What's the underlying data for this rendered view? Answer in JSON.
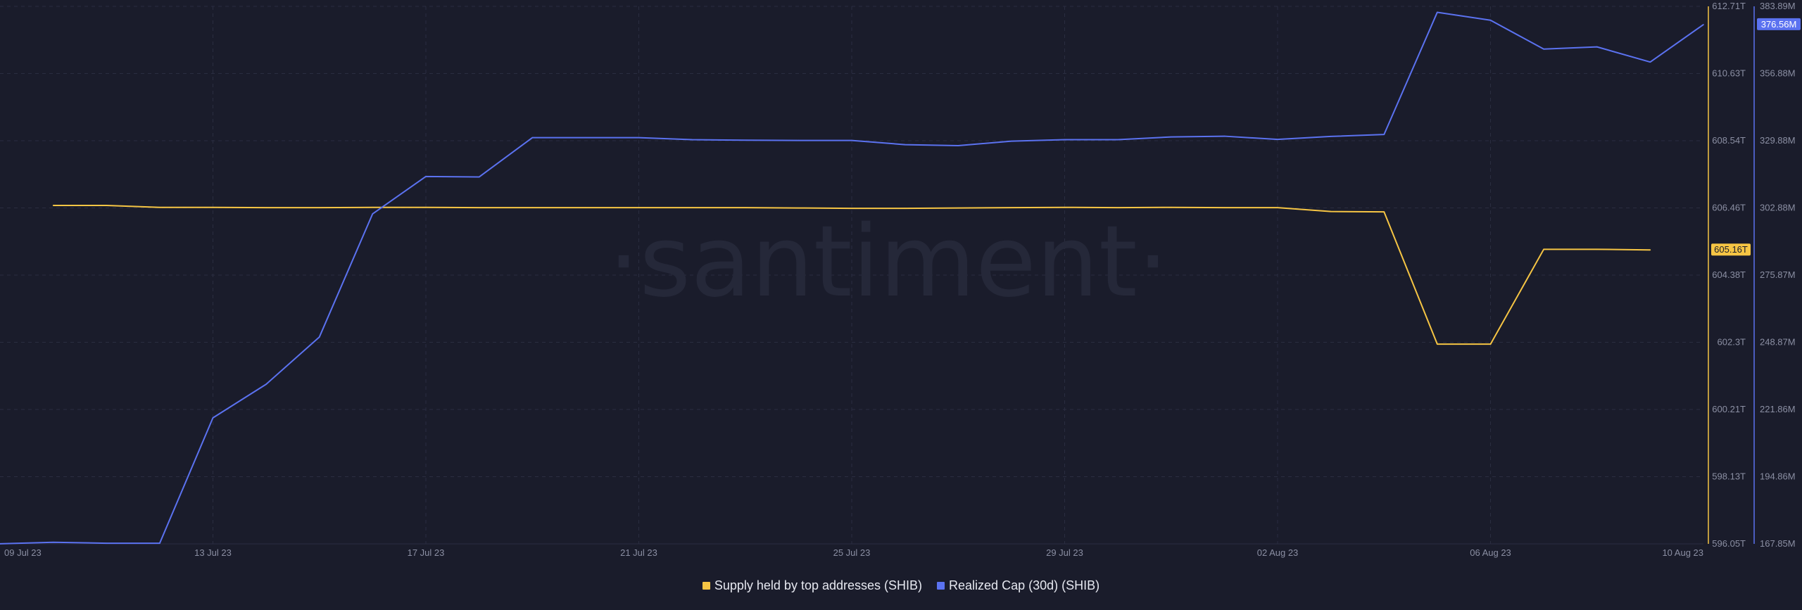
{
  "watermark": "·santiment·",
  "colors": {
    "background": "#1a1c2b",
    "grid": "#2a2d40",
    "supply": "#f6c544",
    "realized_cap": "#5b72f0"
  },
  "legend": {
    "supply_label": "Supply held by top addresses (SHIB)",
    "realized_cap_label": "Realized Cap (30d) (SHIB)"
  },
  "chart_data": {
    "type": "line",
    "x_tick_labels": [
      "09 Jul 23",
      "13 Jul 23",
      "17 Jul 23",
      "21 Jul 23",
      "25 Jul 23",
      "29 Jul 23",
      "02 Aug 23",
      "06 Aug 23",
      "10 Aug 23"
    ],
    "x": [
      "09 Jul 23",
      "10 Jul 23",
      "11 Jul 23",
      "12 Jul 23",
      "13 Jul 23",
      "14 Jul 23",
      "15 Jul 23",
      "16 Jul 23",
      "17 Jul 23",
      "18 Jul 23",
      "19 Jul 23",
      "20 Jul 23",
      "21 Jul 23",
      "22 Jul 23",
      "23 Jul 23",
      "24 Jul 23",
      "25 Jul 23",
      "26 Jul 23",
      "27 Jul 23",
      "28 Jul 23",
      "29 Jul 23",
      "30 Jul 23",
      "31 Jul 23",
      "01 Aug 23",
      "02 Aug 23",
      "03 Aug 23",
      "04 Aug 23",
      "05 Aug 23",
      "06 Aug 23",
      "07 Aug 23",
      "08 Aug 23",
      "09 Aug 23",
      "10 Aug 23"
    ],
    "xlim": [
      "09 Jul 23",
      "10 Aug 23"
    ],
    "grid": true,
    "legend_position": "bottom-center",
    "series": [
      {
        "name": "Supply held by top addresses (SHIB)",
        "axis": "left",
        "color": "#f6c544",
        "last_value_label": "605.16T",
        "values": [
          null,
          606.54,
          606.54,
          606.48,
          606.48,
          606.47,
          606.47,
          606.48,
          606.48,
          606.47,
          606.47,
          606.47,
          606.47,
          606.47,
          606.47,
          606.46,
          606.45,
          606.45,
          606.46,
          606.47,
          606.48,
          606.47,
          606.48,
          606.47,
          606.47,
          606.35,
          606.34,
          602.24,
          602.24,
          605.18,
          605.18,
          605.16,
          null
        ]
      },
      {
        "name": "Realized Cap (30d) (SHIB)",
        "axis": "right",
        "color": "#5b72f0",
        "last_value_label": "376.56M",
        "values": [
          167.9,
          168.5,
          168.1,
          168.1,
          218.5,
          232,
          251,
          300.5,
          315.5,
          315.3,
          331.1,
          331.1,
          331.1,
          330.3,
          330.1,
          330,
          330,
          328.3,
          327.9,
          329.7,
          330.3,
          330.3,
          331.4,
          331.7,
          330.4,
          331.6,
          332.4,
          381.5,
          378.3,
          366.7,
          367.6,
          361.5,
          376.56
        ]
      }
    ],
    "y_left": {
      "ticks": [
        "612.71T",
        "610.63T",
        "608.54T",
        "606.46T",
        "604.38T",
        "602.3T",
        "600.21T",
        "598.13T",
        "596.05T"
      ],
      "min": 596.05,
      "max": 612.71
    },
    "y_right": {
      "ticks": [
        "383.89M",
        "356.88M",
        "329.88M",
        "302.88M",
        "275.87M",
        "248.87M",
        "221.86M",
        "194.86M",
        "167.85M"
      ],
      "min": 167.85,
      "max": 383.89
    }
  }
}
